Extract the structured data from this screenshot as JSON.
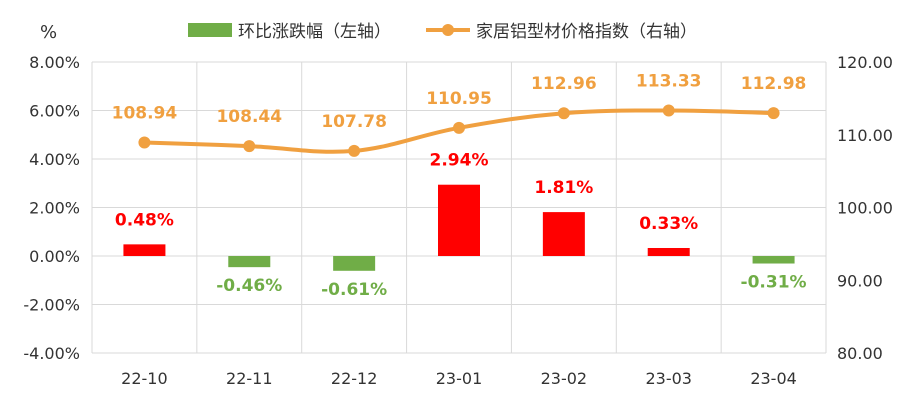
{
  "chart_data": {
    "type": "bar",
    "title": "",
    "y_left_unit": "%",
    "categories": [
      "22-10",
      "22-11",
      "22-12",
      "23-01",
      "23-02",
      "23-03",
      "23-04"
    ],
    "series": [
      {
        "name": "环比涨跌幅（左轴）",
        "type": "bar",
        "axis": "left",
        "values": [
          0.48,
          -0.46,
          -0.61,
          2.94,
          1.81,
          0.33,
          -0.31
        ],
        "labels": [
          "0.48%",
          "-0.46%",
          "-0.61%",
          "2.94%",
          "1.81%",
          "0.33%",
          "-0.31%"
        ],
        "color_positive": "#FF0000",
        "color_negative": "#70AD47"
      },
      {
        "name": "家居铝型材价格指数（右轴）",
        "type": "line",
        "axis": "right",
        "values": [
          108.94,
          108.44,
          107.78,
          110.95,
          112.96,
          113.33,
          112.98
        ],
        "labels": [
          "108.94",
          "108.44",
          "107.78",
          "110.95",
          "112.96",
          "113.33",
          "112.98"
        ],
        "color": "#F0A040"
      }
    ],
    "y_left": {
      "range": [
        -4,
        8
      ],
      "ticks": [
        "-4.00%",
        "-2.00%",
        "0.00%",
        "2.00%",
        "4.00%",
        "6.00%",
        "8.00%"
      ]
    },
    "y_right": {
      "range": [
        80,
        120
      ],
      "ticks": [
        "80.00",
        "90.00",
        "100.00",
        "110.00",
        "120.00"
      ]
    },
    "grid": true,
    "legend_position": "top"
  }
}
